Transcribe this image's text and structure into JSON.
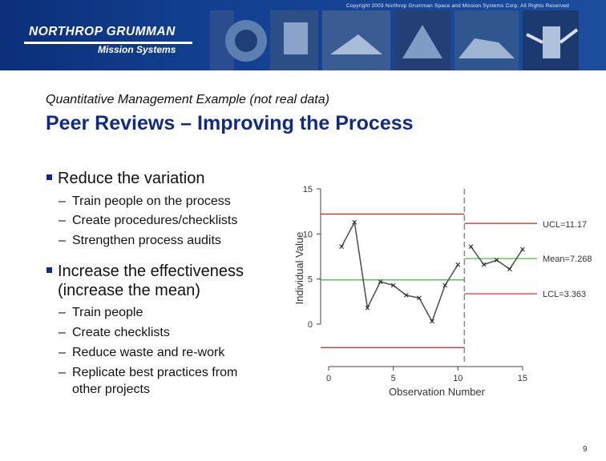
{
  "banner": {
    "copyright": "Copyright 2003 Northrop Grumman Space and Mission Systems Corp. All Rights Reserved",
    "logo_line1": "NORTHROP GRUMMAN",
    "logo_line2": "Mission Systems"
  },
  "slide": {
    "subtitle": "Quantitative Management Example (not real data)",
    "title": "Peer Reviews – Improving the Process",
    "bullet1": "Reduce the variation",
    "bullet1_items": [
      "Train people on the process",
      "Create procedures/checklists",
      "Strengthen process audits"
    ],
    "bullet2_line1": "Increase the effectiveness",
    "bullet2_line2": "(increase the mean)",
    "bullet2_items": [
      "Train people",
      "Create checklists",
      "Reduce waste and re-work",
      "Replicate best practices from"
    ],
    "bullet2_item4_cont": "other projects",
    "dash": "–",
    "page_number": "9"
  },
  "chart_data": {
    "type": "line",
    "xlabel": "Observation Number",
    "ylabel": "Individual Value",
    "xlim": [
      0,
      15.5
    ],
    "ylim": [
      -4,
      15
    ],
    "xticks": [
      0,
      5,
      10,
      15
    ],
    "yticks": [
      0,
      5,
      10,
      15
    ],
    "x": [
      1,
      2,
      3,
      4,
      5,
      6,
      7,
      8,
      9,
      10,
      11,
      12,
      13,
      14,
      15
    ],
    "values": [
      8.6,
      11.3,
      1.8,
      4.7,
      4.3,
      3.2,
      2.9,
      0.3,
      4.3,
      6.6,
      8.6,
      6.6,
      7.1,
      6.1,
      8.3
    ],
    "split_at": 10.5,
    "phase1": {
      "ucl": 12.2,
      "mean": 4.9,
      "lcl": -2.6
    },
    "phase2": {
      "ucl": 11.17,
      "mean": 7.268,
      "lcl": 3.363
    },
    "labels": {
      "ucl": "UCL=11.17",
      "mean": "Mean=7.268",
      "lcl": "LCL=3.363"
    },
    "colors": {
      "limit": "#cc2222",
      "mean": "#33bb33",
      "split": "#888888",
      "series": "#555555"
    }
  }
}
